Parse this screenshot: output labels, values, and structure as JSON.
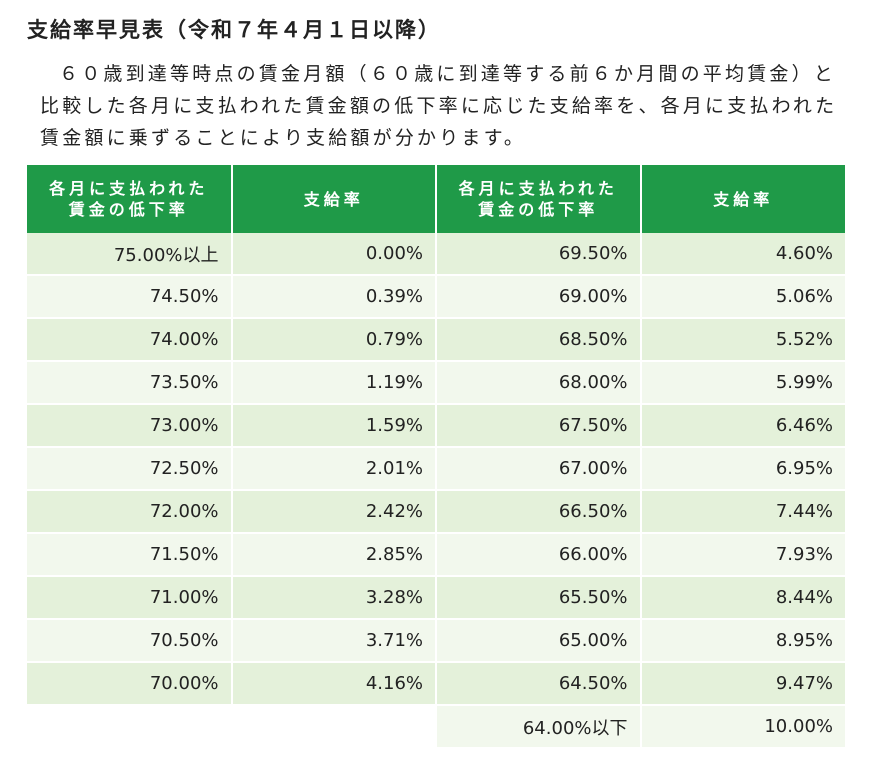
{
  "header": {
    "title": "支給率早見表（令和７年４月１日以降）"
  },
  "paragraph": "６０歳到達等時点の賃金月額（６０歳に到達等する前６か月間の平均賃金）と比較した各月に支払われた賃金額の低下率に応じた支給率を、各月に支払われた賃金額に乗ずることにより支給額が分かります。",
  "table": {
    "columns": [
      "各月に支払われた賃金の低下率",
      "支給率",
      "各月に支払われた賃金の低下率",
      "支給率"
    ],
    "rows": [
      [
        "75.00%以上",
        "0.00%",
        "69.50%",
        "4.60%"
      ],
      [
        "74.50%",
        "0.39%",
        "69.00%",
        "5.06%"
      ],
      [
        "74.00%",
        "0.79%",
        "68.50%",
        "5.52%"
      ],
      [
        "73.50%",
        "1.19%",
        "68.00%",
        "5.99%"
      ],
      [
        "73.00%",
        "1.59%",
        "67.50%",
        "6.46%"
      ],
      [
        "72.50%",
        "2.01%",
        "67.00%",
        "6.95%"
      ],
      [
        "72.00%",
        "2.42%",
        "66.50%",
        "7.44%"
      ],
      [
        "71.50%",
        "2.85%",
        "66.00%",
        "7.93%"
      ],
      [
        "71.00%",
        "3.28%",
        "65.50%",
        "8.44%"
      ],
      [
        "70.50%",
        "3.71%",
        "65.00%",
        "8.95%"
      ],
      [
        "70.00%",
        "4.16%",
        "64.50%",
        "9.47%"
      ],
      [
        null,
        null,
        "64.00%以下",
        "10.00%"
      ]
    ]
  }
}
